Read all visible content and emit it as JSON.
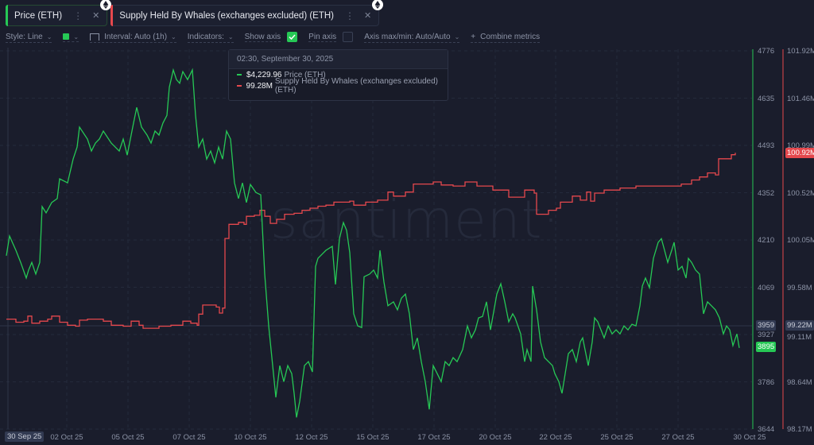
{
  "metrics": [
    {
      "label": "Price (ETH)",
      "color": "#26c855",
      "badge": "ethereum-icon"
    },
    {
      "label": "Supply Held By Whales (exchanges excluded) (ETH)",
      "color": "#e5484d",
      "badge": "ethereum-icon"
    }
  ],
  "toolbar": {
    "style": "Style: Line",
    "interval": "Interval: Auto (1h)",
    "indicators": "Indicators:",
    "show_axis": "Show axis",
    "show_axis_checked": true,
    "pin_axis": "Pin axis",
    "pin_axis_checked": false,
    "axis_minmax": "Axis max/min: Auto/Auto",
    "combine": "Combine metrics",
    "combine_icon": "+"
  },
  "tooltip": {
    "datetime": "02:30, September 30, 2025",
    "rows": [
      {
        "value": "$4,229.96",
        "name": "Price (ETH)",
        "color": "#26c855"
      },
      {
        "value": "99.28M",
        "name": "Supply Held By Whales (exchanges excluded) (ETH)",
        "color": "#e5484d"
      }
    ]
  },
  "watermark": "·santiment·",
  "price_axis": {
    "ticks": [
      "4776",
      "4635",
      "4493",
      "4352",
      "4210",
      "4069",
      "3927",
      "3786",
      "3644"
    ],
    "crosshair_value": "3959",
    "current_value": "3895",
    "color": "#26c855"
  },
  "whale_axis": {
    "ticks": [
      "101.92M",
      "101.46M",
      "100.99M",
      "100.52M",
      "100.05M",
      "99.58M",
      "99.11M",
      "98.64M",
      "98.17M"
    ],
    "crosshair_value": "99.22M",
    "current_value": "100.92M",
    "color": "#e5484d"
  },
  "x_axis": {
    "crosshair_label": "30 Sep 25",
    "labels": [
      "02 Oct 25",
      "05 Oct 25",
      "07 Oct 25",
      "10 Oct 25",
      "12 Oct 25",
      "15 Oct 25",
      "17 Oct 25",
      "20 Oct 25",
      "22 Oct 25",
      "25 Oct 25",
      "27 Oct 25",
      "30 Oct 25"
    ]
  },
  "chart_data": {
    "type": "line",
    "title": "",
    "xlabel": "",
    "x_range": [
      "30 Sep 25",
      "30 Oct 25"
    ],
    "categories": [
      "30 Sep 25",
      "02 Oct 25",
      "05 Oct 25",
      "07 Oct 25",
      "10 Oct 25",
      "12 Oct 25",
      "15 Oct 25",
      "17 Oct 25",
      "20 Oct 25",
      "22 Oct 25",
      "25 Oct 25",
      "27 Oct 25",
      "30 Oct 25"
    ],
    "grid": true,
    "legend_position": "top-left chips",
    "series": [
      {
        "name": "Price (ETH)",
        "axis": "left-inner",
        "color": "#26c855",
        "ylim": [
          3644,
          4776
        ],
        "points": [
          [
            8,
            4163
          ],
          [
            12,
            4222
          ],
          [
            20,
            4179
          ],
          [
            26,
            4143
          ],
          [
            33,
            4096
          ],
          [
            36,
            4120
          ],
          [
            40,
            4143
          ],
          [
            45,
            4108
          ],
          [
            50,
            4143
          ],
          [
            53,
            4310
          ],
          [
            58,
            4291
          ],
          [
            65,
            4322
          ],
          [
            72,
            4334
          ],
          [
            75,
            4393
          ],
          [
            85,
            4381
          ],
          [
            92,
            4452
          ],
          [
            97,
            4488
          ],
          [
            100,
            4548
          ],
          [
            110,
            4512
          ],
          [
            115,
            4476
          ],
          [
            120,
            4500
          ],
          [
            125,
            4512
          ],
          [
            130,
            4536
          ],
          [
            140,
            4500
          ],
          [
            150,
            4476
          ],
          [
            155,
            4512
          ],
          [
            160,
            4464
          ],
          [
            168,
            4560
          ],
          [
            172,
            4607
          ],
          [
            178,
            4548
          ],
          [
            185,
            4524
          ],
          [
            190,
            4500
          ],
          [
            195,
            4536
          ],
          [
            200,
            4524
          ],
          [
            205,
            4560
          ],
          [
            210,
            4583
          ],
          [
            213,
            4667
          ],
          [
            218,
            4719
          ],
          [
            222,
            4690
          ],
          [
            226,
            4679
          ],
          [
            230,
            4714
          ],
          [
            236,
            4690
          ],
          [
            242,
            4719
          ],
          [
            246,
            4583
          ],
          [
            250,
            4488
          ],
          [
            255,
            4512
          ],
          [
            260,
            4452
          ],
          [
            265,
            4476
          ],
          [
            270,
            4441
          ],
          [
            275,
            4488
          ],
          [
            280,
            4452
          ],
          [
            285,
            4536
          ],
          [
            290,
            4512
          ],
          [
            295,
            4381
          ],
          [
            300,
            4334
          ],
          [
            305,
            4381
          ],
          [
            310,
            4322
          ],
          [
            315,
            4376
          ],
          [
            322,
            4352
          ],
          [
            328,
            4345
          ],
          [
            333,
            4108
          ],
          [
            338,
            3953
          ],
          [
            342,
            3858
          ],
          [
            347,
            3739
          ],
          [
            352,
            3834
          ],
          [
            357,
            3786
          ],
          [
            362,
            3834
          ],
          [
            367,
            3810
          ],
          [
            370,
            3751
          ],
          [
            373,
            3679
          ],
          [
            377,
            3727
          ],
          [
            383,
            3834
          ],
          [
            388,
            3846
          ],
          [
            393,
            3815
          ],
          [
            397,
            4131
          ],
          [
            400,
            4155
          ],
          [
            405,
            4167
          ],
          [
            410,
            4179
          ],
          [
            418,
            4191
          ],
          [
            422,
            4077
          ],
          [
            427,
            4214
          ],
          [
            432,
            4262
          ],
          [
            436,
            4239
          ],
          [
            440,
            4172
          ],
          [
            445,
            3989
          ],
          [
            450,
            3953
          ],
          [
            455,
            3948
          ],
          [
            458,
            4100
          ],
          [
            465,
            4108
          ],
          [
            470,
            4120
          ],
          [
            475,
            4096
          ],
          [
            478,
            4179
          ],
          [
            483,
            4084
          ],
          [
            488,
            4013
          ],
          [
            495,
            4025
          ],
          [
            500,
            4001
          ],
          [
            505,
            4036
          ],
          [
            510,
            4048
          ],
          [
            515,
            3989
          ],
          [
            520,
            3882
          ],
          [
            525,
            3917
          ],
          [
            530,
            3846
          ],
          [
            535,
            3786
          ],
          [
            540,
            3703
          ],
          [
            545,
            3834
          ],
          [
            550,
            3810
          ],
          [
            555,
            3786
          ],
          [
            560,
            3846
          ],
          [
            565,
            3834
          ],
          [
            570,
            3858
          ],
          [
            575,
            3846
          ],
          [
            582,
            3882
          ],
          [
            588,
            3953
          ],
          [
            593,
            3917
          ],
          [
            598,
            3941
          ],
          [
            602,
            3977
          ],
          [
            607,
            3981
          ],
          [
            612,
            4025
          ],
          [
            617,
            3941
          ],
          [
            625,
            4048
          ],
          [
            630,
            4079
          ],
          [
            635,
            4025
          ],
          [
            640,
            3965
          ],
          [
            645,
            3989
          ],
          [
            648,
            3977
          ],
          [
            655,
            3929
          ],
          [
            660,
            3846
          ],
          [
            663,
            3882
          ],
          [
            668,
            3846
          ],
          [
            670,
            4072
          ],
          [
            675,
            4001
          ],
          [
            680,
            3905
          ],
          [
            685,
            3858
          ],
          [
            690,
            3846
          ],
          [
            695,
            3834
          ],
          [
            698,
            3810
          ],
          [
            703,
            3786
          ],
          [
            707,
            3751
          ],
          [
            711,
            3810
          ],
          [
            715,
            3870
          ],
          [
            720,
            3882
          ],
          [
            725,
            3846
          ],
          [
            730,
            3905
          ],
          [
            733,
            3917
          ],
          [
            740,
            3834
          ],
          [
            745,
            3905
          ],
          [
            748,
            3977
          ],
          [
            752,
            3965
          ],
          [
            756,
            3941
          ],
          [
            760,
            3917
          ],
          [
            765,
            3953
          ],
          [
            770,
            3929
          ],
          [
            775,
            3941
          ],
          [
            780,
            3929
          ],
          [
            785,
            3953
          ],
          [
            790,
            3941
          ],
          [
            795,
            3958
          ],
          [
            800,
            3953
          ],
          [
            805,
            4013
          ],
          [
            808,
            4072
          ],
          [
            812,
            4096
          ],
          [
            817,
            4067
          ],
          [
            822,
            4155
          ],
          [
            828,
            4203
          ],
          [
            832,
            4214
          ],
          [
            836,
            4179
          ],
          [
            840,
            4143
          ],
          [
            845,
            4179
          ],
          [
            848,
            4203
          ],
          [
            853,
            4120
          ],
          [
            858,
            4131
          ],
          [
            863,
            4096
          ],
          [
            866,
            4155
          ],
          [
            870,
            4143
          ],
          [
            875,
            4120
          ],
          [
            880,
            4108
          ],
          [
            885,
            3989
          ],
          [
            890,
            4025
          ],
          [
            895,
            4013
          ],
          [
            900,
            4001
          ],
          [
            905,
            3977
          ],
          [
            910,
            3929
          ],
          [
            914,
            3953
          ],
          [
            918,
            3941
          ],
          [
            922,
            3894
          ],
          [
            927,
            3929
          ],
          [
            930,
            3887
          ]
        ]
      },
      {
        "name": "Supply Held By Whales (exchanges excluded) (ETH)",
        "axis": "right-outer",
        "color": "#e5484d",
        "unit": "M",
        "ylim": [
          98.17,
          101.92
        ],
        "points": [
          [
            8,
            99.26
          ],
          [
            20,
            99.23
          ],
          [
            30,
            99.24
          ],
          [
            35,
            99.29
          ],
          [
            40,
            99.22
          ],
          [
            50,
            99.24
          ],
          [
            60,
            99.26
          ],
          [
            65,
            99.29
          ],
          [
            75,
            99.23
          ],
          [
            85,
            99.2
          ],
          [
            95,
            99.19
          ],
          [
            100,
            99.25
          ],
          [
            110,
            99.26
          ],
          [
            130,
            99.24
          ],
          [
            140,
            99.2
          ],
          [
            155,
            99.19
          ],
          [
            165,
            99.24
          ],
          [
            175,
            99.2
          ],
          [
            180,
            99.17
          ],
          [
            190,
            99.17
          ],
          [
            200,
            99.19
          ],
          [
            215,
            99.2
          ],
          [
            230,
            99.24
          ],
          [
            240,
            99.22
          ],
          [
            248,
            99.2
          ],
          [
            250,
            99.31
          ],
          [
            255,
            99.4
          ],
          [
            265,
            99.4
          ],
          [
            272,
            99.38
          ],
          [
            276,
            99.32
          ],
          [
            280,
            99.37
          ],
          [
            283,
            100.06
          ],
          [
            288,
            100.2
          ],
          [
            300,
            100.22
          ],
          [
            307,
            100.2
          ],
          [
            310,
            100.28
          ],
          [
            320,
            100.29
          ],
          [
            327,
            100.34
          ],
          [
            333,
            100.28
          ],
          [
            340,
            100.21
          ],
          [
            348,
            100.25
          ],
          [
            358,
            100.3
          ],
          [
            370,
            100.31
          ],
          [
            380,
            100.34
          ],
          [
            390,
            100.36
          ],
          [
            400,
            100.38
          ],
          [
            410,
            100.39
          ],
          [
            420,
            100.42
          ],
          [
            440,
            100.43
          ],
          [
            445,
            100.39
          ],
          [
            460,
            100.42
          ],
          [
            475,
            100.44
          ],
          [
            488,
            100.52
          ],
          [
            495,
            100.48
          ],
          [
            510,
            100.52
          ],
          [
            520,
            100.6
          ],
          [
            530,
            100.6
          ],
          [
            545,
            100.62
          ],
          [
            555,
            100.59
          ],
          [
            570,
            100.58
          ],
          [
            585,
            100.62
          ],
          [
            600,
            100.58
          ],
          [
            615,
            100.58
          ],
          [
            620,
            100.54
          ],
          [
            640,
            100.47
          ],
          [
            660,
            100.54
          ],
          [
            672,
            100.51
          ],
          [
            675,
            100.3
          ],
          [
            690,
            100.34
          ],
          [
            700,
            100.36
          ],
          [
            705,
            100.42
          ],
          [
            720,
            100.48
          ],
          [
            730,
            100.44
          ],
          [
            738,
            100.52
          ],
          [
            743,
            100.43
          ],
          [
            748,
            100.51
          ],
          [
            760,
            100.54
          ],
          [
            780,
            100.56
          ],
          [
            800,
            100.58
          ],
          [
            820,
            100.58
          ],
          [
            840,
            100.58
          ],
          [
            850,
            100.58
          ],
          [
            857,
            100.6
          ],
          [
            870,
            100.64
          ],
          [
            880,
            100.67
          ],
          [
            890,
            100.71
          ],
          [
            900,
            100.69
          ],
          [
            904,
            100.85
          ],
          [
            912,
            100.85
          ],
          [
            920,
            100.89
          ],
          [
            925,
            100.91
          ]
        ]
      }
    ]
  }
}
